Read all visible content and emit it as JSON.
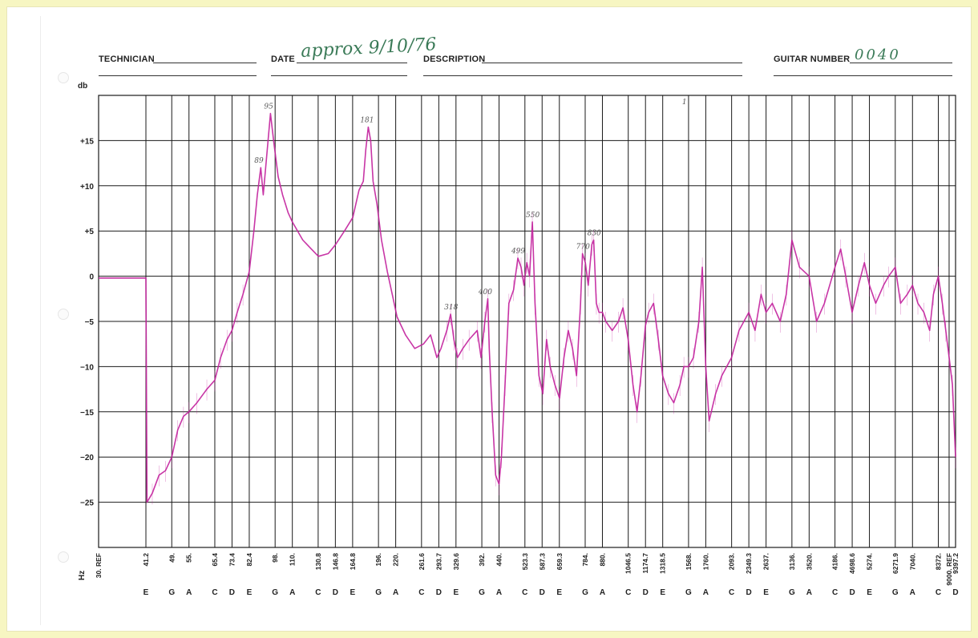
{
  "header": {
    "technician_label": "TECHNICIAN",
    "technician_value": "",
    "date_label": "DATE",
    "date_value": "approx 9/10/76",
    "description_label": "DESCRIPTION",
    "description_value": "",
    "guitar_number_label": "GUITAR NUMBER",
    "guitar_number_value": "0040"
  },
  "colors": {
    "background": "#f7f6c2",
    "paper": "#ffffff",
    "grid": "#1a1a1a",
    "trace": "#c2209c",
    "handwriting": "#3a7a57"
  },
  "chart_data": {
    "type": "line",
    "ylabel": "db",
    "xlabel": "Hz",
    "ylim": [
      -30,
      20
    ],
    "yticks": [
      {
        "value": 15,
        "label": "+15"
      },
      {
        "value": 10,
        "label": "+10"
      },
      {
        "value": 5,
        "label": "+5"
      },
      {
        "value": 0,
        "label": "0"
      },
      {
        "value": -5,
        "label": "−5"
      },
      {
        "value": -10,
        "label": "−10"
      },
      {
        "value": -15,
        "label": "−15"
      },
      {
        "value": -20,
        "label": "−20"
      },
      {
        "value": -25,
        "label": "−25"
      }
    ],
    "xscale": "log",
    "xlim": [
      30,
      9397.2
    ],
    "xticks": [
      {
        "hz": 30,
        "label": "30. REF",
        "note": ""
      },
      {
        "hz": 41.2,
        "label": "41.2",
        "note": "E"
      },
      {
        "hz": 49,
        "label": "49.",
        "note": "G"
      },
      {
        "hz": 55,
        "label": "55.",
        "note": "A"
      },
      {
        "hz": 65.4,
        "label": "65.4",
        "note": "C"
      },
      {
        "hz": 73.4,
        "label": "73.4",
        "note": "D"
      },
      {
        "hz": 82.4,
        "label": "82.4",
        "note": "E"
      },
      {
        "hz": 98,
        "label": "98.",
        "note": "G"
      },
      {
        "hz": 110,
        "label": "110.",
        "note": "A"
      },
      {
        "hz": 130.8,
        "label": "130.8",
        "note": "C"
      },
      {
        "hz": 146.8,
        "label": "146.8",
        "note": "D"
      },
      {
        "hz": 164.8,
        "label": "164.8",
        "note": "E"
      },
      {
        "hz": 196,
        "label": "196.",
        "note": "G"
      },
      {
        "hz": 220,
        "label": "220.",
        "note": "A"
      },
      {
        "hz": 261.6,
        "label": "261.6",
        "note": "C"
      },
      {
        "hz": 293.7,
        "label": "293.7",
        "note": "D"
      },
      {
        "hz": 329.6,
        "label": "329.6",
        "note": "E"
      },
      {
        "hz": 392,
        "label": "392.",
        "note": "G"
      },
      {
        "hz": 440,
        "label": "440.",
        "note": "A"
      },
      {
        "hz": 523.3,
        "label": "523.3",
        "note": "C"
      },
      {
        "hz": 587.3,
        "label": "587.3",
        "note": "D"
      },
      {
        "hz": 659.3,
        "label": "659.3",
        "note": "E"
      },
      {
        "hz": 784,
        "label": "784.",
        "note": "G"
      },
      {
        "hz": 880,
        "label": "880.",
        "note": "A"
      },
      {
        "hz": 1046.5,
        "label": "1046.5",
        "note": "C"
      },
      {
        "hz": 1174.7,
        "label": "1174.7",
        "note": "D"
      },
      {
        "hz": 1318.5,
        "label": "1318.5",
        "note": "E"
      },
      {
        "hz": 1568,
        "label": "1568.",
        "note": "G"
      },
      {
        "hz": 1760,
        "label": "1760.",
        "note": "A"
      },
      {
        "hz": 2093,
        "label": "2093.",
        "note": "C"
      },
      {
        "hz": 2349.3,
        "label": "2349.3",
        "note": "D"
      },
      {
        "hz": 2637,
        "label": "2637.",
        "note": "E"
      },
      {
        "hz": 3136,
        "label": "3136.",
        "note": "G"
      },
      {
        "hz": 3520,
        "label": "3520.",
        "note": "A"
      },
      {
        "hz": 4186,
        "label": "4186.",
        "note": "C"
      },
      {
        "hz": 4698.6,
        "label": "4698.6",
        "note": "D"
      },
      {
        "hz": 5274,
        "label": "5274.",
        "note": "E"
      },
      {
        "hz": 6271.9,
        "label": "6271.9",
        "note": "G"
      },
      {
        "hz": 7040,
        "label": "7040.",
        "note": "A"
      },
      {
        "hz": 8372,
        "label": "8372.",
        "note": "C"
      },
      {
        "hz": 9000,
        "label": "9000. REF",
        "note": ""
      },
      {
        "hz": 9397.2,
        "label": "9397.2",
        "note": "D"
      }
    ],
    "series": [
      {
        "values": [
          [
            30,
            -0.2
          ],
          [
            41.2,
            -0.2
          ],
          [
            41.5,
            -25
          ],
          [
            43,
            -24
          ],
          [
            45,
            -22
          ],
          [
            47,
            -21.5
          ],
          [
            49,
            -20
          ],
          [
            51,
            -17
          ],
          [
            53,
            -15.5
          ],
          [
            55,
            -15
          ],
          [
            58,
            -14
          ],
          [
            62,
            -12.5
          ],
          [
            65.4,
            -11.5
          ],
          [
            68,
            -9
          ],
          [
            71,
            -7
          ],
          [
            73.4,
            -6
          ],
          [
            76,
            -4
          ],
          [
            79,
            -2
          ],
          [
            82.4,
            0.5
          ],
          [
            85,
            5
          ],
          [
            87,
            9
          ],
          [
            89,
            12
          ],
          [
            90.5,
            9
          ],
          [
            92,
            12
          ],
          [
            94,
            16
          ],
          [
            95,
            18
          ],
          [
            97,
            15
          ],
          [
            100,
            11
          ],
          [
            103,
            9
          ],
          [
            107,
            7
          ],
          [
            110,
            6
          ],
          [
            118,
            4
          ],
          [
            125,
            3
          ],
          [
            131,
            2.2
          ],
          [
            140,
            2.5
          ],
          [
            147,
            3.5
          ],
          [
            156,
            5
          ],
          [
            165,
            6.5
          ],
          [
            172,
            9.5
          ],
          [
            177,
            10.5
          ],
          [
            180,
            14
          ],
          [
            183,
            16.5
          ],
          [
            186,
            15
          ],
          [
            189,
            10.5
          ],
          [
            194,
            8
          ],
          [
            200,
            4
          ],
          [
            208,
            0.5
          ],
          [
            215,
            -2
          ],
          [
            222,
            -4.5
          ],
          [
            235,
            -6.5
          ],
          [
            250,
            -8
          ],
          [
            265,
            -7.5
          ],
          [
            278,
            -6.5
          ],
          [
            290,
            -9
          ],
          [
            298,
            -8
          ],
          [
            310,
            -6
          ],
          [
            318,
            -4.2
          ],
          [
            325,
            -7
          ],
          [
            333,
            -9
          ],
          [
            345,
            -8
          ],
          [
            360,
            -7
          ],
          [
            380,
            -6
          ],
          [
            390,
            -9
          ],
          [
            400,
            -5
          ],
          [
            408,
            -2.5
          ],
          [
            412,
            -8
          ],
          [
            420,
            -15
          ],
          [
            430,
            -22
          ],
          [
            440,
            -23
          ],
          [
            447,
            -20
          ],
          [
            458,
            -12
          ],
          [
            470,
            -3
          ],
          [
            485,
            -1.5
          ],
          [
            499,
            2
          ],
          [
            510,
            1
          ],
          [
            520,
            -1
          ],
          [
            530,
            1.5
          ],
          [
            540,
            0
          ],
          [
            550,
            6
          ],
          [
            560,
            -3
          ],
          [
            575,
            -11
          ],
          [
            590,
            -13
          ],
          [
            605,
            -7
          ],
          [
            620,
            -10
          ],
          [
            640,
            -12
          ],
          [
            660,
            -13.5
          ],
          [
            680,
            -9
          ],
          [
            700,
            -6
          ],
          [
            720,
            -8
          ],
          [
            740,
            -11
          ],
          [
            760,
            -3
          ],
          [
            770,
            2.5
          ],
          [
            785,
            1.5
          ],
          [
            800,
            -1
          ],
          [
            820,
            3.5
          ],
          [
            830,
            4
          ],
          [
            845,
            -3
          ],
          [
            860,
            -4
          ],
          [
            880,
            -4
          ],
          [
            900,
            -5
          ],
          [
            940,
            -6
          ],
          [
            980,
            -5
          ],
          [
            1010,
            -3.5
          ],
          [
            1046,
            -7
          ],
          [
            1080,
            -12
          ],
          [
            1110,
            -15
          ],
          [
            1140,
            -11
          ],
          [
            1174,
            -5.5
          ],
          [
            1200,
            -4
          ],
          [
            1240,
            -3
          ],
          [
            1280,
            -7
          ],
          [
            1318,
            -11
          ],
          [
            1370,
            -13
          ],
          [
            1420,
            -14
          ],
          [
            1480,
            -12
          ],
          [
            1520,
            -10
          ],
          [
            1568,
            -10
          ],
          [
            1620,
            -9
          ],
          [
            1680,
            -5
          ],
          [
            1720,
            1
          ],
          [
            1760,
            -10
          ],
          [
            1800,
            -16
          ],
          [
            1880,
            -13
          ],
          [
            1960,
            -11
          ],
          [
            2093,
            -9
          ],
          [
            2200,
            -6
          ],
          [
            2349,
            -4
          ],
          [
            2450,
            -6
          ],
          [
            2550,
            -2
          ],
          [
            2637,
            -4
          ],
          [
            2750,
            -3
          ],
          [
            2900,
            -5
          ],
          [
            3020,
            -2
          ],
          [
            3136,
            4
          ],
          [
            3300,
            1
          ],
          [
            3520,
            0
          ],
          [
            3700,
            -5
          ],
          [
            3900,
            -3
          ],
          [
            4186,
            1
          ],
          [
            4350,
            3
          ],
          [
            4500,
            0
          ],
          [
            4698,
            -4
          ],
          [
            4900,
            -1
          ],
          [
            5100,
            1.5
          ],
          [
            5274,
            -1
          ],
          [
            5500,
            -3
          ],
          [
            5800,
            -1
          ],
          [
            6000,
            0
          ],
          [
            6271,
            1
          ],
          [
            6500,
            -3
          ],
          [
            6800,
            -2
          ],
          [
            7040,
            -1
          ],
          [
            7300,
            -3
          ],
          [
            7600,
            -4
          ],
          [
            7900,
            -6
          ],
          [
            8100,
            -2
          ],
          [
            8372,
            0
          ],
          [
            8600,
            -3
          ],
          [
            8800,
            -6
          ],
          [
            9000,
            -9
          ],
          [
            9200,
            -12
          ],
          [
            9397,
            -20
          ]
        ]
      }
    ],
    "annotations": [
      {
        "text": "89",
        "x": 89,
        "y": 12
      },
      {
        "text": "95",
        "x": 95,
        "y": 18
      },
      {
        "text": "181",
        "x": 181,
        "y": 16.5
      },
      {
        "text": "318",
        "x": 318,
        "y": -4.2
      },
      {
        "text": "400",
        "x": 400,
        "y": -2.5
      },
      {
        "text": "499",
        "x": 499,
        "y": 2
      },
      {
        "text": "550",
        "x": 550,
        "y": 6
      },
      {
        "text": "770",
        "x": 770,
        "y": 2.5
      },
      {
        "text": "830",
        "x": 830,
        "y": 4
      },
      {
        "text": "1",
        "x": 1568,
        "y": 18.5
      }
    ]
  }
}
